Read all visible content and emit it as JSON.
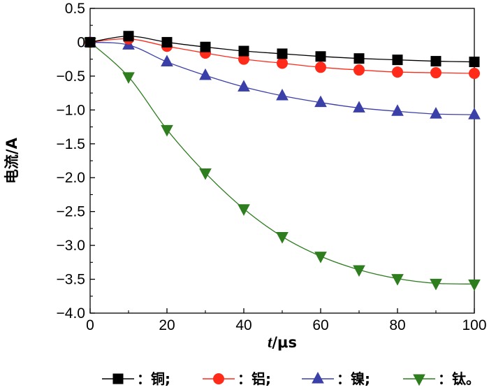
{
  "chart_data": {
    "type": "line",
    "xlabel_var": "t",
    "xlabel_unit": "/μs",
    "ylabel": "电流/A",
    "xlim": [
      0,
      100
    ],
    "ylim": [
      -4.0,
      0.5
    ],
    "x_ticks": [
      0,
      20,
      40,
      60,
      80,
      100
    ],
    "y_ticks": [
      0.5,
      0,
      -0.5,
      -1.0,
      -1.5,
      -2.0,
      -2.5,
      -3.0,
      -3.5,
      -4.0
    ],
    "y_tick_labels": [
      "0.5",
      "0",
      "−0.5",
      "−1.0",
      "−1.5",
      "−2.0",
      "−2.5",
      "−3.0",
      "−3.5",
      "−4.0"
    ],
    "x": [
      0,
      10,
      20,
      30,
      40,
      50,
      60,
      70,
      80,
      90,
      100
    ],
    "series": [
      {
        "name": "：铜;",
        "color": "#000000",
        "marker": "square",
        "values": [
          0,
          0.09,
          0.0,
          -0.07,
          -0.13,
          -0.17,
          -0.21,
          -0.24,
          -0.26,
          -0.28,
          -0.29
        ]
      },
      {
        "name": "：铝;",
        "color": "#ff2a1a",
        "marker": "circle",
        "values": [
          0,
          0.05,
          -0.06,
          -0.16,
          -0.25,
          -0.31,
          -0.37,
          -0.41,
          -0.44,
          -0.45,
          -0.46
        ]
      },
      {
        "name": "：镍;",
        "color": "#3b3fa8",
        "marker": "triangle-up",
        "values": [
          0,
          -0.04,
          -0.29,
          -0.49,
          -0.66,
          -0.79,
          -0.89,
          -0.97,
          -1.02,
          -1.06,
          -1.07
        ]
      },
      {
        "name": "：钛。",
        "color": "#2e7d1f",
        "marker": "triangle-down",
        "values": [
          0,
          -0.51,
          -1.29,
          -1.93,
          -2.46,
          -2.87,
          -3.16,
          -3.36,
          -3.49,
          -3.56,
          -3.57
        ]
      }
    ],
    "grid": false,
    "legend_position": "bottom"
  }
}
